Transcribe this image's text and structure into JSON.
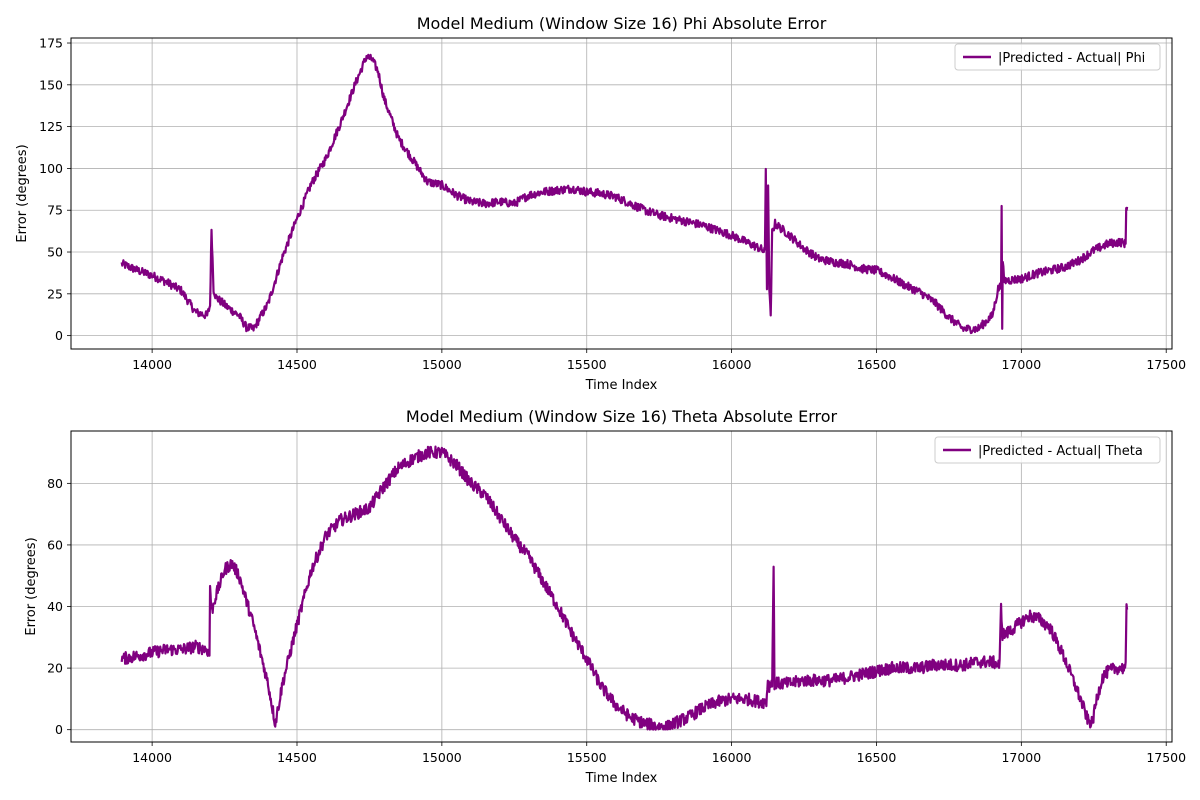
{
  "chart_data": [
    {
      "type": "line",
      "title": "Model Medium (Window Size 16) Phi Absolute Error",
      "xlabel": "Time Index",
      "ylabel": "Error (degrees)",
      "xlim": [
        13720,
        17520
      ],
      "ylim": [
        -8,
        178
      ],
      "xticks": [
        14000,
        14500,
        15000,
        15500,
        16000,
        16500,
        17000,
        17500
      ],
      "yticks": [
        0,
        25,
        50,
        75,
        100,
        125,
        150,
        175
      ],
      "grid": true,
      "legend_position": "top-right",
      "series": [
        {
          "name": "|Predicted - Actual| Phi",
          "color": "#800080",
          "noise": 2.5,
          "x": [
            13895,
            13950,
            14000,
            14050,
            14100,
            14150,
            14190,
            14200,
            14205,
            14212,
            14220,
            14260,
            14300,
            14325,
            14350,
            14400,
            14450,
            14500,
            14550,
            14600,
            14650,
            14700,
            14740,
            14760,
            14780,
            14800,
            14850,
            14900,
            14950,
            15000,
            15050,
            15100,
            15150,
            15200,
            15250,
            15300,
            15350,
            15400,
            15450,
            15500,
            15550,
            15600,
            15650,
            15700,
            15750,
            15800,
            15850,
            15900,
            15950,
            16000,
            16050,
            16100,
            16115,
            16118,
            16122,
            16126,
            16130,
            16135,
            16140,
            16150,
            16200,
            16250,
            16300,
            16350,
            16400,
            16450,
            16500,
            16550,
            16600,
            16650,
            16700,
            16750,
            16800,
            16850,
            16900,
            16920,
            16930,
            16932,
            16934,
            16936,
            16940,
            16950,
            17000,
            17050,
            17100,
            17150,
            17200,
            17250,
            17300,
            17340,
            17360,
            17362,
            17365
          ],
          "y": [
            43,
            39,
            36,
            32,
            27,
            14,
            12,
            18,
            64,
            28,
            23,
            17,
            12,
            5,
            4,
            19,
            47,
            70,
            91,
            106,
            127,
            150,
            167,
            165,
            158,
            142,
            118,
            105,
            92,
            90,
            84,
            80,
            79,
            80,
            79,
            84,
            86,
            87,
            88,
            86,
            85,
            83,
            79,
            75,
            72,
            70,
            68,
            66,
            63,
            60,
            56,
            52,
            50,
            100,
            28,
            88,
            30,
            10,
            62,
            67,
            60,
            52,
            46,
            44,
            43,
            40,
            39,
            35,
            30,
            26,
            20,
            11,
            4,
            4,
            12,
            28,
            30,
            80,
            2,
            45,
            33,
            33,
            34,
            37,
            39,
            41,
            45,
            51,
            55,
            56,
            55,
            77,
            77
          ]
        }
      ]
    },
    {
      "type": "line",
      "title": "Model Medium (Window Size 16) Theta Absolute Error",
      "xlabel": "Time Index",
      "ylabel": "Error (degrees)",
      "xlim": [
        13720,
        17520
      ],
      "ylim": [
        -4,
        97
      ],
      "xticks": [
        14000,
        14500,
        15000,
        15500,
        16000,
        16500,
        17000,
        17500
      ],
      "yticks": [
        0,
        20,
        40,
        60,
        80
      ],
      "grid": true,
      "legend_position": "top-right",
      "series": [
        {
          "name": "|Predicted - Actual| Theta",
          "color": "#800080",
          "noise": 2.0,
          "x": [
            13895,
            13950,
            14000,
            14050,
            14100,
            14150,
            14190,
            14198,
            14200,
            14205,
            14215,
            14250,
            14275,
            14300,
            14350,
            14400,
            14425,
            14450,
            14500,
            14550,
            14600,
            14650,
            14700,
            14750,
            14800,
            14850,
            14900,
            14950,
            15000,
            15050,
            15100,
            15150,
            15200,
            15250,
            15300,
            15350,
            15400,
            15450,
            15500,
            15550,
            15600,
            15650,
            15700,
            15750,
            15780,
            15800,
            15850,
            15900,
            15950,
            16000,
            16050,
            16100,
            16120,
            16125,
            16130,
            16140,
            16145,
            16148,
            16150,
            16160,
            16200,
            16250,
            16300,
            16350,
            16400,
            16450,
            16500,
            16550,
            16600,
            16650,
            16700,
            16750,
            16800,
            16850,
            16900,
            16925,
            16930,
            16935,
            16945,
            16960,
            17000,
            17030,
            17060,
            17100,
            17150,
            17200,
            17230,
            17245,
            17260,
            17280,
            17300,
            17330,
            17360,
            17363,
            17365
          ],
          "y": [
            23,
            24,
            25,
            26,
            26,
            27,
            26,
            24,
            47,
            38,
            42,
            52,
            54,
            50,
            34,
            15,
            2,
            15,
            34,
            52,
            63,
            68,
            70,
            72,
            79,
            85,
            88,
            90,
            90,
            86,
            80,
            76,
            69,
            62,
            56,
            48,
            40,
            31,
            23,
            14,
            8,
            4,
            2,
            1,
            1,
            2,
            4,
            7,
            9,
            10,
            10,
            9,
            9,
            16,
            14,
            16,
            53,
            15,
            15,
            15,
            15,
            16,
            16,
            16,
            17,
            18,
            19,
            20,
            20,
            20,
            21,
            21,
            21,
            22,
            22,
            21,
            40,
            31,
            31,
            32,
            35,
            37,
            36,
            33,
            23,
            11,
            3,
            2,
            10,
            17,
            19,
            20,
            20,
            39,
            39
          ]
        }
      ]
    }
  ]
}
